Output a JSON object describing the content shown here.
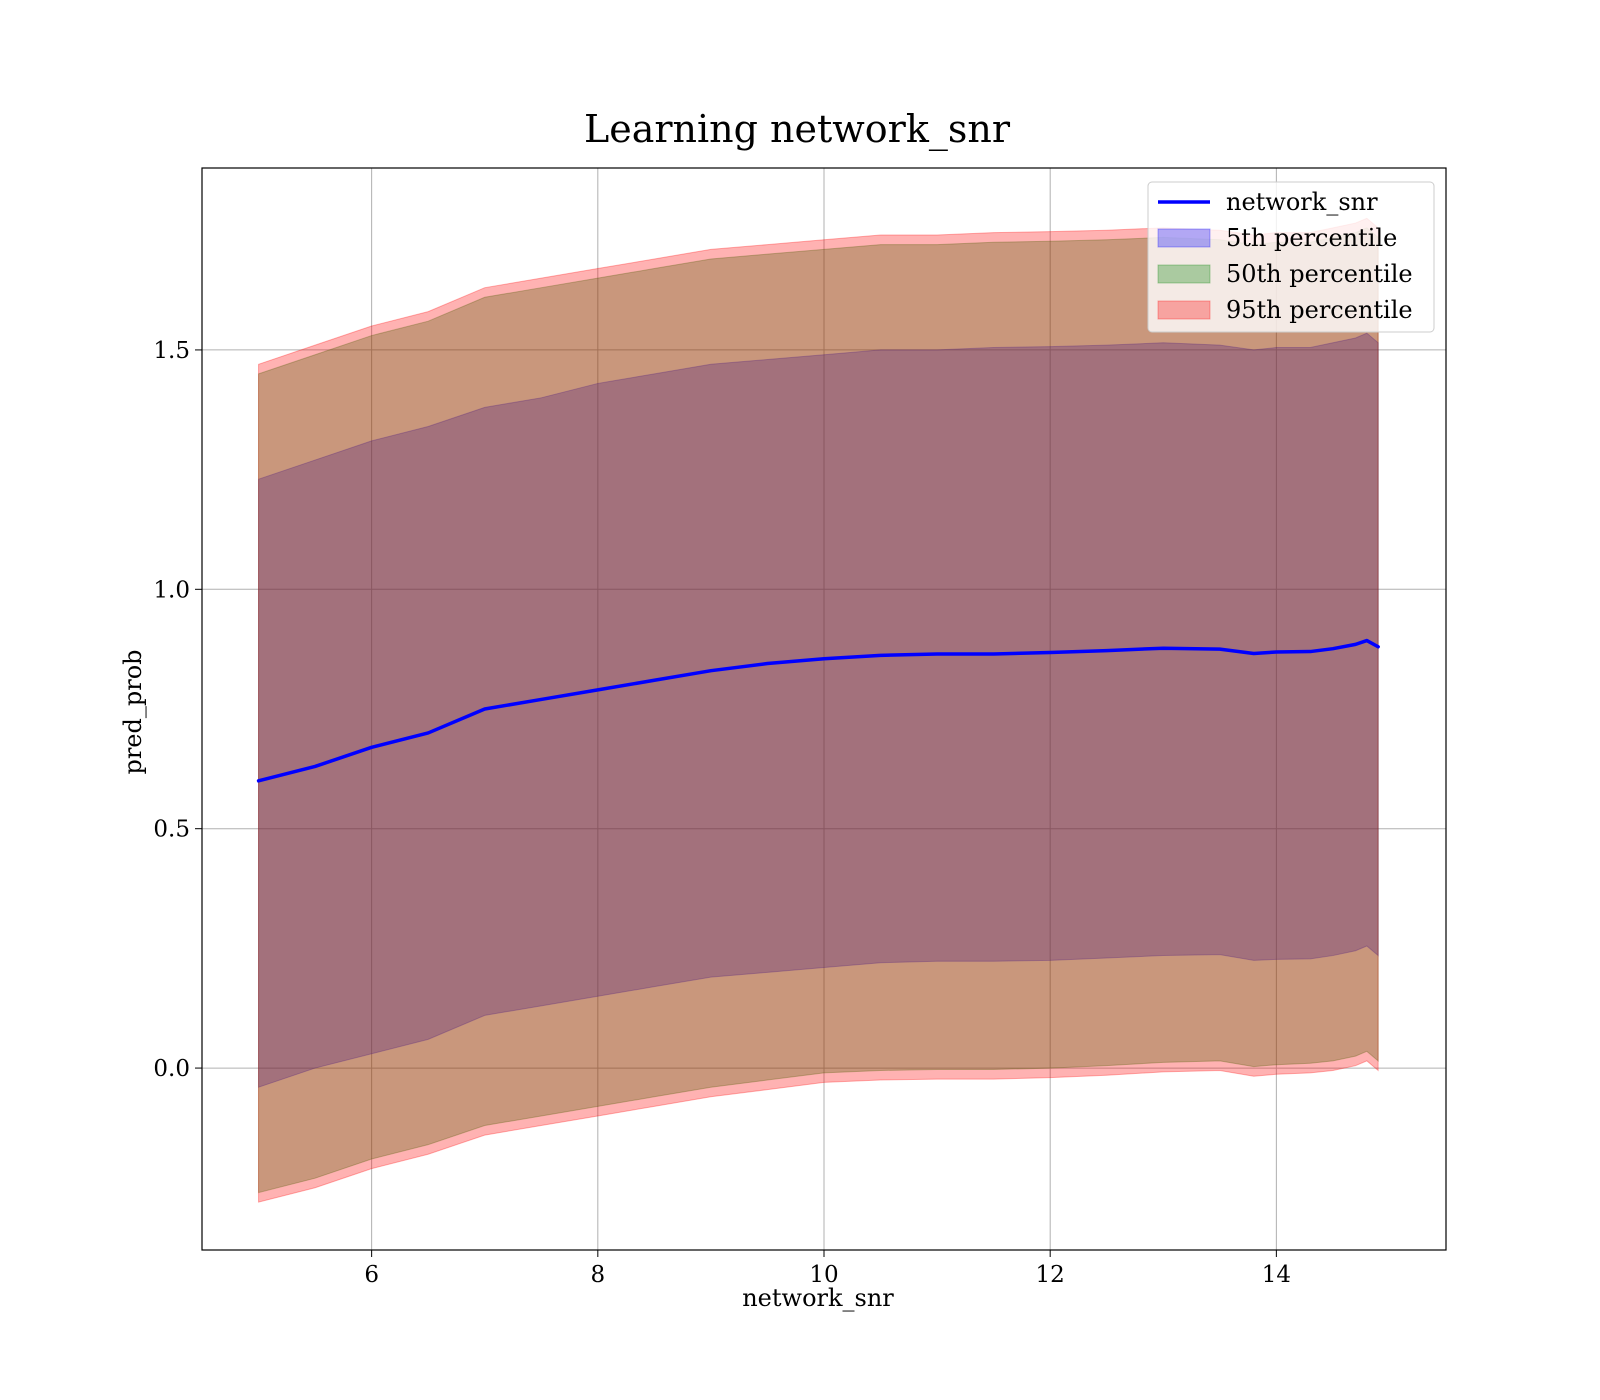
{
  "chart_data": {
    "type": "area",
    "title": "Learning network_snr",
    "xlabel": "network_snr",
    "ylabel": "pred_prob",
    "xlim": [
      4.5,
      15.5
    ],
    "ylim": [
      -0.38,
      1.88
    ],
    "xticks": [
      6,
      8,
      10,
      12,
      14
    ],
    "xtick_labels": [
      "6",
      "8",
      "10",
      "12",
      "14"
    ],
    "yticks": [
      0.0,
      0.5,
      1.0,
      1.5
    ],
    "ytick_labels": [
      "0.0",
      "0.5",
      "1.0",
      "1.5"
    ],
    "grid": true,
    "legend_position": "top-right",
    "x": [
      5.0,
      5.5,
      6.0,
      6.5,
      7.0,
      7.5,
      8.0,
      8.5,
      9.0,
      9.5,
      10.0,
      10.5,
      11.0,
      11.5,
      12.0,
      12.5,
      13.0,
      13.5,
      13.8,
      14.0,
      14.3,
      14.5,
      14.7,
      14.8,
      14.9
    ],
    "line": {
      "name": "network_snr",
      "color": "#0000ff",
      "values": [
        0.6,
        0.63,
        0.67,
        0.7,
        0.75,
        0.77,
        0.79,
        0.81,
        0.83,
        0.845,
        0.855,
        0.862,
        0.865,
        0.865,
        0.868,
        0.872,
        0.877,
        0.875,
        0.866,
        0.869,
        0.87,
        0.876,
        0.885,
        0.893,
        0.88
      ]
    },
    "bands": [
      {
        "name": "5th percentile",
        "color": "#0000ff",
        "lower": [
          -0.04,
          0.0,
          0.03,
          0.06,
          0.11,
          0.13,
          0.15,
          0.17,
          0.19,
          0.2,
          0.21,
          0.22,
          0.223,
          0.223,
          0.225,
          0.23,
          0.235,
          0.237,
          0.225,
          0.227,
          0.228,
          0.235,
          0.245,
          0.255,
          0.235
        ],
        "upper": [
          1.23,
          1.27,
          1.31,
          1.34,
          1.38,
          1.4,
          1.43,
          1.45,
          1.47,
          1.48,
          1.49,
          1.5,
          1.5,
          1.505,
          1.507,
          1.51,
          1.515,
          1.51,
          1.5,
          1.505,
          1.505,
          1.515,
          1.525,
          1.535,
          1.515
        ]
      },
      {
        "name": "50th percentile",
        "color": "#008000",
        "lower": [
          -0.26,
          -0.23,
          -0.19,
          -0.16,
          -0.12,
          -0.1,
          -0.08,
          -0.06,
          -0.04,
          -0.025,
          -0.01,
          -0.005,
          -0.003,
          -0.003,
          0.0,
          0.005,
          0.012,
          0.015,
          0.003,
          0.007,
          0.01,
          0.015,
          0.025,
          0.035,
          0.015
        ],
        "upper": [
          1.45,
          1.49,
          1.53,
          1.56,
          1.61,
          1.63,
          1.65,
          1.67,
          1.69,
          1.7,
          1.71,
          1.72,
          1.72,
          1.725,
          1.727,
          1.73,
          1.735,
          1.73,
          1.72,
          1.725,
          1.725,
          1.735,
          1.745,
          1.755,
          1.735
        ]
      },
      {
        "name": "95th percentile",
        "color": "#ff0000",
        "lower": [
          -0.28,
          -0.25,
          -0.21,
          -0.18,
          -0.14,
          -0.12,
          -0.1,
          -0.08,
          -0.06,
          -0.045,
          -0.03,
          -0.025,
          -0.023,
          -0.023,
          -0.02,
          -0.015,
          -0.008,
          -0.005,
          -0.017,
          -0.013,
          -0.01,
          -0.005,
          0.005,
          0.015,
          -0.005
        ],
        "upper": [
          1.47,
          1.51,
          1.55,
          1.58,
          1.63,
          1.65,
          1.67,
          1.69,
          1.71,
          1.72,
          1.73,
          1.74,
          1.74,
          1.745,
          1.747,
          1.75,
          1.755,
          1.75,
          1.74,
          1.745,
          1.745,
          1.755,
          1.765,
          1.775,
          1.755
        ]
      }
    ],
    "legend": [
      {
        "label": "network_snr",
        "kind": "line",
        "color": "#0000ff"
      },
      {
        "label": "5th percentile",
        "kind": "patch",
        "color": "#0000ff"
      },
      {
        "label": "50th percentile",
        "kind": "patch",
        "color": "#008000"
      },
      {
        "label": "95th percentile",
        "kind": "patch",
        "color": "#ff0000"
      }
    ]
  }
}
